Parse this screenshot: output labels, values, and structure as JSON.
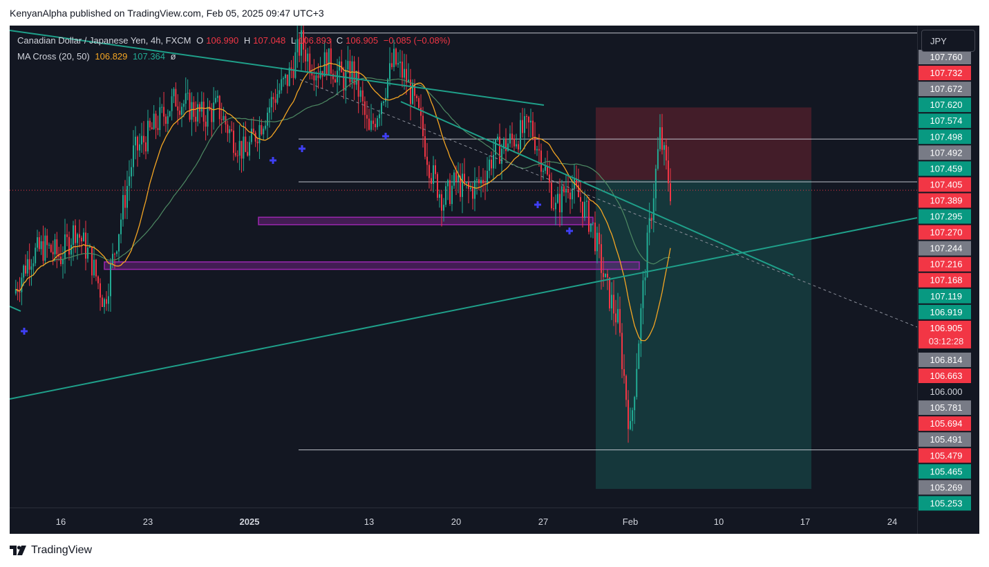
{
  "header": {
    "publisher_line": "KenyanAlpha published on TradingView.com, Feb 05, 2025 09:47 UTC+3"
  },
  "legend": {
    "symbol": "Canadian Dollar / Japanese Yen, 4h, FXCM",
    "open_label": "O",
    "open": "106.990",
    "high_label": "H",
    "high": "107.048",
    "low_label": "L",
    "low": "106.893",
    "close_label": "C",
    "close": "106.905",
    "change": "−0.085 (−0.08%)",
    "indicator": "MA Cross (20, 50)",
    "ma_fast": "106.829",
    "ma_slow": "107.364",
    "indicator_extra": "ø"
  },
  "currency_button": "JPY",
  "footer": {
    "brand": "TradingView"
  },
  "colors": {
    "background": "#131722",
    "up": "#22ab94",
    "down": "#f23645",
    "ma_fast": "#f5a623",
    "ma_slow": "#4e8a63",
    "trendline": "#1fa08a",
    "zone": "#9c27b0",
    "marker": "#3f3ff5"
  },
  "chart_data": {
    "type": "candlestick",
    "symbol": "CADJPY",
    "timeframe": "4h",
    "x_ticks": [
      "16",
      "23",
      "2025",
      "13",
      "20",
      "27",
      "Feb",
      "10",
      "17",
      "24"
    ],
    "ylim": [
      105.2,
      107.79
    ],
    "price_axis_labels": [
      {
        "value": "107.760",
        "style": "gray"
      },
      {
        "value": "107.732",
        "style": "red"
      },
      {
        "value": "107.672",
        "style": "gray"
      },
      {
        "value": "107.620",
        "style": "green"
      },
      {
        "value": "107.574",
        "style": "green"
      },
      {
        "value": "107.498",
        "style": "green"
      },
      {
        "value": "107.492",
        "style": "gray"
      },
      {
        "value": "107.459",
        "style": "green"
      },
      {
        "value": "107.405",
        "style": "red"
      },
      {
        "value": "107.389",
        "style": "red"
      },
      {
        "value": "107.295",
        "style": "green"
      },
      {
        "value": "107.270",
        "style": "red"
      },
      {
        "value": "107.244",
        "style": "gray"
      },
      {
        "value": "107.216",
        "style": "red"
      },
      {
        "value": "107.168",
        "style": "red"
      },
      {
        "value": "107.119",
        "style": "green"
      },
      {
        "value": "106.919",
        "style": "green"
      },
      {
        "value": "106.905",
        "style": "current"
      },
      {
        "value": "03:12:28",
        "style": "countdown"
      },
      {
        "value": "106.814",
        "style": "gray"
      },
      {
        "value": "106.663",
        "style": "red"
      },
      {
        "value": "106.000",
        "style": "plain"
      },
      {
        "value": "105.781",
        "style": "gray"
      },
      {
        "value": "105.694",
        "style": "red"
      },
      {
        "value": "105.491",
        "style": "gray"
      },
      {
        "value": "105.479",
        "style": "red"
      },
      {
        "value": "105.465",
        "style": "green"
      },
      {
        "value": "105.269",
        "style": "gray"
      },
      {
        "value": "105.253",
        "style": "green"
      }
    ],
    "current_price": 106.905,
    "horizontal_lines": [
      107.75,
      107.18,
      106.95,
      105.51
    ],
    "support_zones": [
      [
        106.52,
        106.48
      ],
      [
        106.76,
        106.72
      ]
    ],
    "position": {
      "entry": 106.96,
      "stop": 107.35,
      "target": 105.3
    },
    "close_path": [
      [
        "Dec 12",
        106.35
      ],
      [
        "Dec 13",
        106.55
      ],
      [
        "Dec 14",
        106.6
      ],
      [
        "Dec 16",
        106.55
      ],
      [
        "Dec 17",
        106.7
      ],
      [
        "Dec 18",
        106.55
      ],
      [
        "Dec 19",
        106.3
      ],
      [
        "Dec 20",
        106.7
      ],
      [
        "Dec 21",
        107.1
      ],
      [
        "Dec 23",
        107.2
      ],
      [
        "Dec 24",
        107.3
      ],
      [
        "Dec 26",
        107.4
      ],
      [
        "Dec 27",
        107.35
      ],
      [
        "Dec 28",
        107.3
      ],
      [
        "Dec 30",
        107.35
      ],
      [
        "Dec 31",
        107.2
      ],
      [
        "Jan 1",
        107.1
      ],
      [
        "Jan 2",
        107.25
      ],
      [
        "Jan 3",
        107.4
      ],
      [
        "Jan 4",
        107.5
      ],
      [
        "Jan 5",
        107.7
      ],
      [
        "Jan 6",
        107.6
      ],
      [
        "Jan 7",
        107.55
      ],
      [
        "Jan 8",
        107.6
      ],
      [
        "Jan 9",
        107.55
      ],
      [
        "Jan 10",
        107.5
      ],
      [
        "Jan 11",
        107.55
      ],
      [
        "Jan 12",
        107.4
      ],
      [
        "Jan 13",
        107.2
      ],
      [
        "Jan 14",
        107.4
      ],
      [
        "Jan 15",
        107.6
      ],
      [
        "Jan 16",
        107.5
      ],
      [
        "Jan 17",
        107.3
      ],
      [
        "Jan 18",
        107.0
      ],
      [
        "Jan 19",
        106.85
      ],
      [
        "Jan 20",
        106.95
      ],
      [
        "Jan 21",
        106.9
      ],
      [
        "Jan 22",
        106.95
      ],
      [
        "Jan 23",
        107.1
      ],
      [
        "Jan 24",
        107.15
      ],
      [
        "Jan 25",
        107.2
      ],
      [
        "Jan 26",
        107.25
      ],
      [
        "Jan 27",
        107.05
      ],
      [
        "Jan 28",
        106.8
      ],
      [
        "Jan 29",
        106.95
      ],
      [
        "Jan 30",
        106.85
      ],
      [
        "Jan 31",
        106.7
      ],
      [
        "Feb 1",
        106.4
      ],
      [
        "Feb 2",
        106.2
      ],
      [
        "Feb 3",
        105.6
      ],
      [
        "Feb 4",
        106.5
      ],
      [
        "Feb 5",
        107.2
      ],
      [
        "Feb 5 09:00",
        106.905
      ]
    ]
  }
}
